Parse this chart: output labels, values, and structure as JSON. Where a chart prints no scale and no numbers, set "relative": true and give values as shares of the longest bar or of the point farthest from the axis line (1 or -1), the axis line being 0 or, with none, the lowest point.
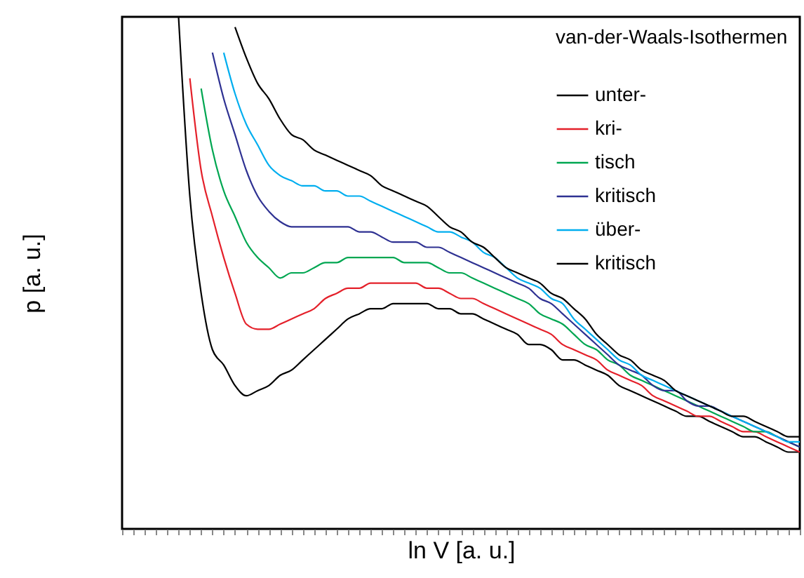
{
  "chart_data": {
    "type": "line",
    "relative": true,
    "xlabel": "ln V [a. u.]",
    "ylabel": "p [a. u.]",
    "legend_title": "van-der-Waals-Isothermen",
    "legend": "top right",
    "grid": false,
    "categories": [
      null,
      null,
      null,
      null,
      null,
      null,
      null,
      null,
      null,
      null,
      null,
      null,
      null,
      null,
      null,
      null,
      null,
      null,
      null,
      null,
      null,
      null,
      null,
      null,
      null,
      null,
      null,
      null,
      null,
      null,
      null,
      null,
      null,
      null,
      null,
      null,
      null,
      null,
      null,
      null,
      null,
      null,
      null,
      null,
      null,
      null,
      null,
      null,
      null,
      null,
      null,
      null,
      null,
      null,
      null,
      null,
      null,
      null,
      null,
      null,
      null
    ],
    "series": [
      {
        "name": "unter-",
        "color": "#000000",
        "values": [
          null,
          null,
          null,
          null,
          null,
          1.0,
          0.65,
          0.46,
          0.35,
          0.32,
          0.28,
          0.26,
          0.27,
          0.28,
          0.3,
          0.31,
          0.33,
          0.35,
          0.37,
          0.39,
          0.41,
          0.42,
          0.43,
          0.43,
          0.44,
          0.44,
          0.44,
          0.44,
          0.43,
          0.43,
          0.42,
          0.42,
          0.41,
          0.4,
          0.39,
          0.38,
          0.36,
          0.36,
          0.35,
          0.33,
          0.33,
          0.32,
          0.31,
          0.3,
          0.28,
          0.27,
          0.26,
          0.25,
          0.24,
          0.23,
          0.22,
          0.22,
          0.21,
          0.2,
          0.19,
          0.18,
          0.18,
          0.17,
          0.16,
          0.15,
          0.15
        ]
      },
      {
        "name": "kri-",
        "color": "#e4202a",
        "values": [
          null,
          null,
          null,
          null,
          null,
          null,
          0.88,
          0.7,
          0.61,
          0.53,
          0.46,
          0.4,
          0.39,
          0.39,
          0.4,
          0.41,
          0.42,
          0.43,
          0.45,
          0.46,
          0.47,
          0.47,
          0.48,
          0.48,
          0.48,
          0.48,
          0.48,
          0.47,
          0.47,
          0.46,
          0.45,
          0.45,
          0.44,
          0.43,
          0.42,
          0.41,
          0.4,
          0.39,
          0.38,
          0.36,
          0.35,
          0.34,
          0.33,
          0.31,
          0.3,
          0.29,
          0.28,
          0.26,
          0.25,
          0.24,
          0.23,
          0.22,
          0.22,
          0.21,
          0.2,
          0.19,
          0.19,
          0.18,
          0.17,
          0.16,
          0.15
        ]
      },
      {
        "name": "tisch",
        "color": "#00a651",
        "values": [
          null,
          null,
          null,
          null,
          null,
          null,
          null,
          0.86,
          0.74,
          0.66,
          0.61,
          0.56,
          0.53,
          0.51,
          0.49,
          0.5,
          0.5,
          0.51,
          0.52,
          0.52,
          0.53,
          0.53,
          0.53,
          0.53,
          0.53,
          0.52,
          0.52,
          0.52,
          0.51,
          0.5,
          0.5,
          0.49,
          0.48,
          0.47,
          0.46,
          0.45,
          0.44,
          0.42,
          0.41,
          0.4,
          0.38,
          0.36,
          0.35,
          0.33,
          0.32,
          0.3,
          0.29,
          0.28,
          0.27,
          0.26,
          0.25,
          0.24,
          0.23,
          0.22,
          0.21,
          0.2,
          0.19,
          0.19,
          0.18,
          0.17,
          0.16
        ]
      },
      {
        "name": "kritisch",
        "color": "#2e3192",
        "values": [
          null,
          null,
          null,
          null,
          null,
          null,
          null,
          null,
          0.93,
          0.84,
          0.77,
          0.7,
          0.65,
          0.62,
          0.6,
          0.59,
          0.59,
          0.59,
          0.59,
          0.59,
          0.59,
          0.58,
          0.58,
          0.57,
          0.56,
          0.56,
          0.56,
          0.55,
          0.55,
          0.54,
          0.53,
          0.52,
          0.51,
          0.5,
          0.49,
          0.48,
          0.47,
          0.45,
          0.44,
          0.42,
          0.4,
          0.38,
          0.36,
          0.34,
          0.32,
          0.31,
          0.3,
          0.28,
          0.27,
          0.27,
          0.25,
          0.24,
          0.24,
          0.23,
          0.22,
          0.21,
          0.2,
          0.19,
          0.18,
          0.17,
          0.16
        ]
      },
      {
        "name": "über-",
        "color": "#00aeef",
        "values": [
          null,
          null,
          null,
          null,
          null,
          null,
          null,
          null,
          null,
          0.93,
          0.85,
          0.79,
          0.75,
          0.71,
          0.69,
          0.68,
          0.67,
          0.67,
          0.66,
          0.66,
          0.65,
          0.65,
          0.64,
          0.63,
          0.62,
          0.61,
          0.6,
          0.59,
          0.58,
          0.58,
          0.57,
          0.56,
          0.54,
          0.53,
          0.51,
          0.49,
          0.48,
          0.47,
          0.45,
          0.44,
          0.41,
          0.39,
          0.37,
          0.35,
          0.33,
          0.32,
          0.3,
          0.29,
          0.28,
          0.27,
          0.26,
          0.25,
          0.24,
          0.23,
          0.22,
          0.21,
          0.2,
          0.19,
          0.18,
          0.17,
          0.17
        ]
      },
      {
        "name": "kritisch",
        "color": "#000000",
        "values": [
          null,
          null,
          null,
          null,
          null,
          null,
          null,
          null,
          null,
          null,
          0.98,
          0.92,
          0.87,
          0.84,
          0.8,
          0.77,
          0.76,
          0.74,
          0.73,
          0.72,
          0.71,
          0.7,
          0.69,
          0.67,
          0.66,
          0.65,
          0.64,
          0.63,
          0.61,
          0.59,
          0.58,
          0.56,
          0.55,
          0.53,
          0.51,
          0.5,
          0.49,
          0.48,
          0.46,
          0.45,
          0.43,
          0.41,
          0.38,
          0.36,
          0.34,
          0.33,
          0.31,
          0.3,
          0.29,
          0.27,
          0.26,
          0.25,
          0.24,
          0.23,
          0.22,
          0.22,
          0.21,
          0.2,
          0.19,
          0.18,
          0.18
        ]
      }
    ]
  }
}
